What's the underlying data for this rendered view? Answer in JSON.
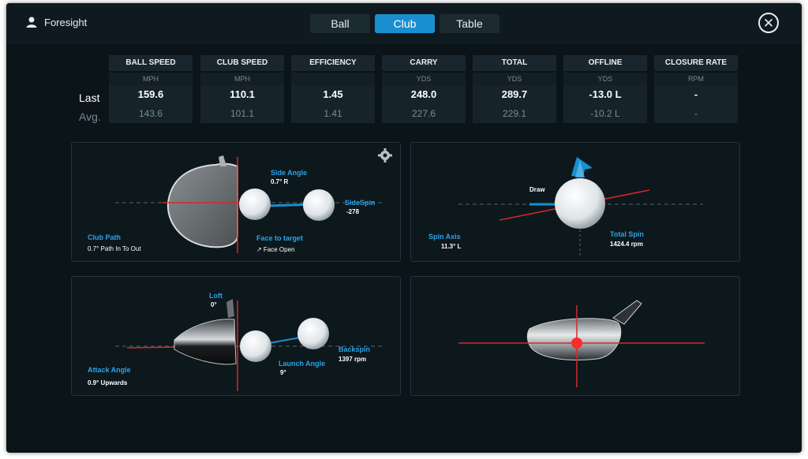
{
  "header": {
    "app_name": "Foresight",
    "tabs": [
      {
        "label": "Ball",
        "active": false
      },
      {
        "label": "Club",
        "active": true
      },
      {
        "label": "Table",
        "active": false
      }
    ],
    "close_symbol": "✕"
  },
  "stats": {
    "row_labels": {
      "last": "Last",
      "avg": "Avg."
    },
    "columns": [
      {
        "header": "BALL SPEED",
        "unit": "MPH",
        "last": "159.6",
        "avg": "143.6"
      },
      {
        "header": "CLUB SPEED",
        "unit": "MPH",
        "last": "110.1",
        "avg": "101.1"
      },
      {
        "header": "EFFICIENCY",
        "unit": "",
        "last": "1.45",
        "avg": "1.41"
      },
      {
        "header": "CARRY",
        "unit": "YDS",
        "last": "248.0",
        "avg": "227.6"
      },
      {
        "header": "TOTAL",
        "unit": "YDS",
        "last": "289.7",
        "avg": "229.1"
      },
      {
        "header": "OFFLINE",
        "unit": "YDS",
        "last": "-13.0 L",
        "avg": "-10.2 L"
      },
      {
        "header": "CLOSURE RATE",
        "unit": "RPM",
        "last": "-",
        "avg": "-"
      }
    ]
  },
  "panel_top_view": {
    "side_angle_label": "Side Angle",
    "side_angle_value": "0.7° R",
    "sidespin_label": "SideSpin",
    "sidespin_value": "-278",
    "club_path_label": "Club Path",
    "club_path_value": "0.7° Path In To Out",
    "face_to_target_label": "Face to target",
    "face_to_target_value": "↗ Face Open"
  },
  "panel_spin_axis": {
    "draw_label": "Draw",
    "spin_axis_label": "Spin Axis",
    "spin_axis_value": "11.3° L",
    "total_spin_label": "Total Spin",
    "total_spin_value": "1424.4 rpm"
  },
  "panel_side_view": {
    "loft_label": "Loft",
    "loft_value": "0°",
    "attack_angle_label": "Attack Angle",
    "attack_angle_value": "0.9° Upwards",
    "launch_angle_label": "Launch Angle",
    "launch_angle_value": "9°",
    "backspin_label": "Backspin",
    "backspin_value": "1397 rpm"
  },
  "colors": {
    "accent_blue": "#1a8fcf",
    "label_blue": "#2aa3e8",
    "red_line": "#d62828",
    "background": "#0b1419"
  }
}
